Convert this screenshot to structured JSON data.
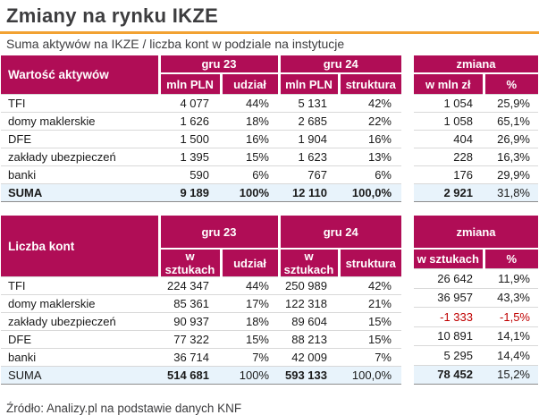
{
  "page": {
    "title": "Zmiany na rynku IKZE",
    "subtitle": "Suma aktywów na IKZE / liczba kont w podziale na instytucje",
    "source": "Źródło: Analizy.pl na podstawie danych KNF"
  },
  "colors": {
    "header_bg": "#B00D56",
    "accent_orange": "#F2A232",
    "sum_row_bg": "#E8F3FB",
    "negative_red": "#C00000",
    "title_gray": "#3D3D3F"
  },
  "chart_data": [
    {
      "type": "table",
      "label": "Wartość aktywów",
      "periods": [
        "gru 23",
        "gru 24"
      ],
      "value_headers": [
        "mln PLN",
        "udział",
        "mln PLN",
        "struktura"
      ],
      "change_header": "zmiana",
      "change_subheaders": [
        "w mln zł",
        "%"
      ],
      "rows": [
        {
          "name": "TFI",
          "values": [
            "4 077",
            "44%",
            "5 131",
            "42%"
          ],
          "change": [
            "1 054",
            "25,9%"
          ]
        },
        {
          "name": "domy maklerskie",
          "values": [
            "1 626",
            "18%",
            "2 685",
            "22%"
          ],
          "change": [
            "1 058",
            "65,1%"
          ]
        },
        {
          "name": "DFE",
          "values": [
            "1 500",
            "16%",
            "1 904",
            "16%"
          ],
          "change": [
            "404",
            "26,9%"
          ]
        },
        {
          "name": "zakłady ubezpieczeń",
          "values": [
            "1 395",
            "15%",
            "1 623",
            "13%"
          ],
          "change": [
            "228",
            "16,3%"
          ]
        },
        {
          "name": "banki",
          "values": [
            "590",
            "6%",
            "767",
            "6%"
          ],
          "change": [
            "176",
            "29,9%"
          ]
        }
      ],
      "sum": {
        "name": "SUMA",
        "values": [
          "9 189",
          "100%",
          "12 110",
          "100,0%"
        ],
        "change": [
          "2 921",
          "31,8%"
        ]
      }
    },
    {
      "type": "table",
      "label": "Liczba kont",
      "periods": [
        "gru 23",
        "gru 24"
      ],
      "value_headers": [
        "w sztukach",
        "udział",
        "w sztukach",
        "struktura"
      ],
      "change_header": "zmiana",
      "change_subheaders": [
        "w sztukach",
        "%"
      ],
      "rows": [
        {
          "name": "TFI",
          "values": [
            "224 347",
            "44%",
            "250 989",
            "42%"
          ],
          "change": [
            "26 642",
            "11,9%"
          ]
        },
        {
          "name": "domy maklerskie",
          "values": [
            "85 361",
            "17%",
            "122 318",
            "21%"
          ],
          "change": [
            "36 957",
            "43,3%"
          ]
        },
        {
          "name": "zakłady ubezpieczeń",
          "values": [
            "90 937",
            "18%",
            "89 604",
            "15%"
          ],
          "change": [
            "-1 333",
            "-1,5%"
          ]
        },
        {
          "name": "DFE",
          "values": [
            "77 322",
            "15%",
            "88 213",
            "15%"
          ],
          "change": [
            "10 891",
            "14,1%"
          ]
        },
        {
          "name": "banki",
          "values": [
            "36 714",
            "7%",
            "42 009",
            "7%"
          ],
          "change": [
            "5 295",
            "14,4%"
          ]
        }
      ],
      "sum": {
        "name": "SUMA",
        "values": [
          "514 681",
          "100%",
          "593 133",
          "100,0%"
        ],
        "change": [
          "78 452",
          "15,2%"
        ]
      }
    }
  ]
}
